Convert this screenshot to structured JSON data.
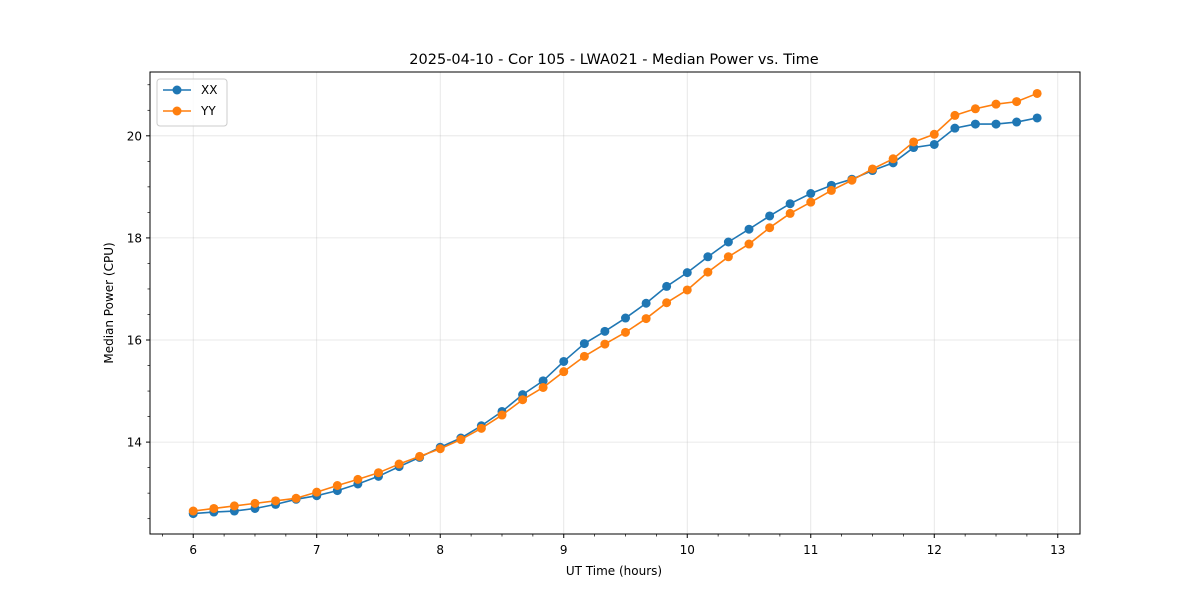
{
  "chart_data": {
    "type": "line",
    "title": "2025-04-10 - Cor 105 - LWA021 - Median Power vs. Time",
    "xlabel": "UT Time (hours)",
    "ylabel": "Median Power (CPU)",
    "xlim": [
      5.65,
      13.18
    ],
    "ylim": [
      12.2,
      21.25
    ],
    "xticks": [
      6,
      7,
      8,
      9,
      10,
      11,
      12,
      13
    ],
    "yticks": [
      14,
      16,
      18,
      20
    ],
    "grid": true,
    "legend_position": "upper-left",
    "x": [
      6.0,
      6.167,
      6.333,
      6.5,
      6.667,
      6.833,
      7.0,
      7.167,
      7.333,
      7.5,
      7.667,
      7.833,
      8.0,
      8.167,
      8.333,
      8.5,
      8.667,
      8.833,
      9.0,
      9.167,
      9.333,
      9.5,
      9.667,
      9.833,
      10.0,
      10.167,
      10.333,
      10.5,
      10.667,
      10.833,
      11.0,
      11.167,
      11.333,
      11.5,
      11.667,
      11.833,
      12.0,
      12.167,
      12.333,
      12.5,
      12.667,
      12.833
    ],
    "series": [
      {
        "name": "XX",
        "color": "#1f77b4",
        "values": [
          12.6,
          12.63,
          12.65,
          12.7,
          12.78,
          12.88,
          12.95,
          13.05,
          13.18,
          13.33,
          13.52,
          13.7,
          13.9,
          14.08,
          14.32,
          14.6,
          14.93,
          15.2,
          15.58,
          15.93,
          16.17,
          16.43,
          16.72,
          17.05,
          17.32,
          17.63,
          17.92,
          18.17,
          18.43,
          18.67,
          18.87,
          19.03,
          19.15,
          19.32,
          19.47,
          19.77,
          19.83,
          20.15,
          20.23,
          20.23,
          20.27,
          20.35
        ]
      },
      {
        "name": "YY",
        "color": "#ff7f0e",
        "values": [
          12.65,
          12.7,
          12.75,
          12.8,
          12.85,
          12.9,
          13.02,
          13.15,
          13.27,
          13.4,
          13.57,
          13.72,
          13.87,
          14.05,
          14.27,
          14.53,
          14.83,
          15.07,
          15.38,
          15.68,
          15.92,
          16.15,
          16.42,
          16.73,
          16.98,
          17.33,
          17.63,
          17.88,
          18.2,
          18.48,
          18.7,
          18.93,
          19.13,
          19.35,
          19.55,
          19.88,
          20.03,
          20.4,
          20.53,
          20.62,
          20.67,
          20.83
        ]
      }
    ]
  }
}
